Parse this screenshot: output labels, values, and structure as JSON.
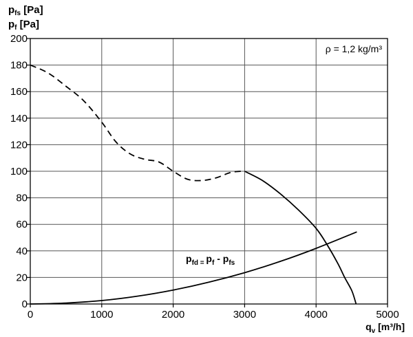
{
  "y_title_line1": {
    "main": "p",
    "sub": "fs",
    "unit": " [Pa]"
  },
  "y_title_line2": {
    "main": "p",
    "sub": "f",
    "unit": " [Pa]"
  },
  "x_title": {
    "main": "q",
    "sub": "v",
    "unit": " [m³/h]"
  },
  "density_note": "ρ = 1,2 kg/m³",
  "formula": {
    "a": "p",
    "a_sub": "fd = ",
    "b": "p",
    "b_sub": "f",
    "c": " - p",
    "c_sub": "fs"
  },
  "chart_data": {
    "type": "line",
    "xlim": [
      0,
      5000
    ],
    "ylim": [
      0,
      200
    ],
    "x_ticks": [
      0,
      1000,
      2000,
      3000,
      4000,
      5000
    ],
    "y_ticks": [
      0,
      20,
      40,
      60,
      80,
      100,
      120,
      140,
      160,
      180,
      200
    ],
    "grid": true,
    "series": [
      {
        "style": "dashed",
        "x": [
          0,
          250,
          500,
          750,
          1000,
          1200,
          1400,
          1600,
          1800,
          2000,
          2200,
          2400,
          2600,
          2800,
          2950
        ],
        "y": [
          180,
          174,
          164,
          153,
          137,
          122,
          113,
          109,
          107,
          100,
          94,
          93,
          95,
          99,
          100
        ]
      },
      {
        "style": "solid",
        "x": [
          3000,
          3250,
          3500,
          3750,
          4000,
          4150,
          4300,
          4400,
          4500,
          4560
        ],
        "y": [
          100,
          93,
          83,
          71,
          57,
          45,
          31,
          20,
          10,
          0
        ]
      },
      {
        "style": "solid",
        "x": [
          0,
          500,
          1000,
          1500,
          2000,
          2500,
          3000,
          3500,
          4000,
          4570
        ],
        "y": [
          0,
          0.7,
          2.6,
          5.9,
          10.5,
          16.4,
          23.6,
          32.1,
          41.9,
          54.3
        ]
      }
    ]
  }
}
